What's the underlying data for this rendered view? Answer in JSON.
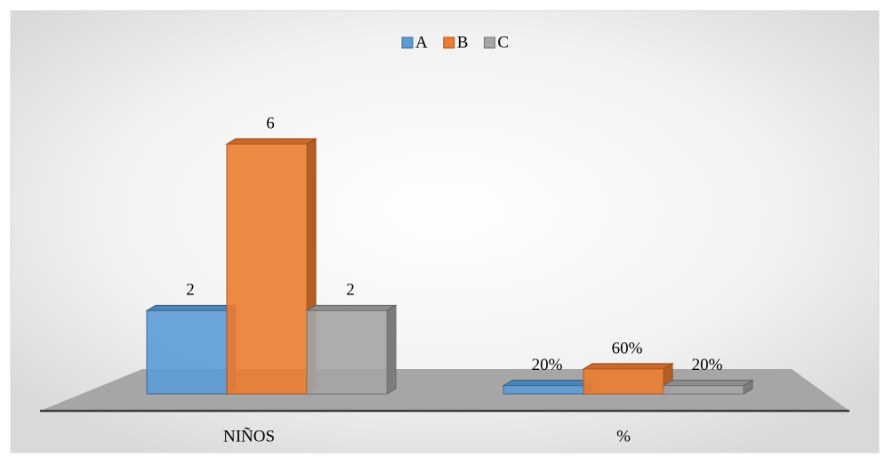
{
  "chart_data": {
    "type": "bar3d",
    "categories": [
      "NIÑOS",
      "%"
    ],
    "series": [
      {
        "name": "A",
        "color": "#5b9bd5",
        "values": [
          2,
          0.2
        ],
        "value_labels": [
          "2",
          "20%"
        ]
      },
      {
        "name": "B",
        "color": "#ed7d31",
        "values": [
          6,
          0.6
        ],
        "value_labels": [
          "6",
          "60%"
        ]
      },
      {
        "name": "C",
        "color": "#a5a5a5",
        "values": [
          2,
          0.2
        ],
        "value_labels": [
          "2",
          "20%"
        ]
      }
    ],
    "legend": "top"
  }
}
